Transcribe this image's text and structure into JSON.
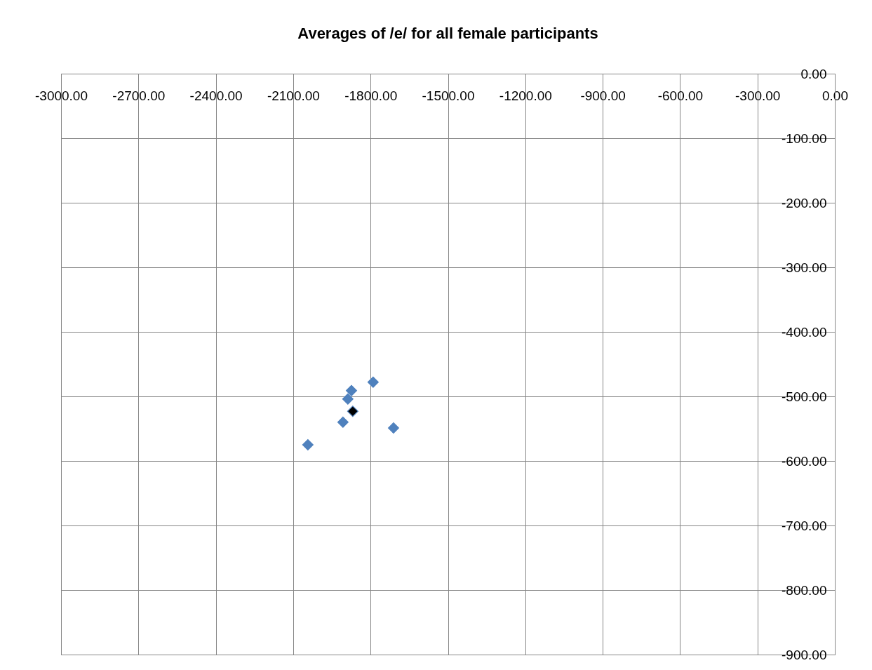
{
  "chart_data": {
    "type": "scatter",
    "title": "Averages of /e/ for all female participants",
    "series": [
      {
        "color": "#4f81bd",
        "x": [
          -2043,
          -1907,
          -1888,
          -1874,
          -1790,
          -1711
        ],
        "values": [
          -575,
          -540,
          -504,
          -491,
          -478,
          -549
        ]
      },
      {
        "color": "#000000",
        "x": [
          -1869
        ],
        "values": [
          -523
        ]
      }
    ],
    "xlim": [
      -3000,
      0
    ],
    "ylim": [
      -900,
      0
    ],
    "xticks": [
      {
        "value": -3000,
        "label": "-3000.00"
      },
      {
        "value": -2700,
        "label": "-2700.00"
      },
      {
        "value": -2400,
        "label": "-2400.00"
      },
      {
        "value": -2100,
        "label": "-2100.00"
      },
      {
        "value": -1800,
        "label": "-1800.00"
      },
      {
        "value": -1500,
        "label": "-1500.00"
      },
      {
        "value": -1200,
        "label": "-1200.00"
      },
      {
        "value": -900,
        "label": "-900.00"
      },
      {
        "value": -600,
        "label": "-600.00"
      },
      {
        "value": -300,
        "label": "-300.00"
      },
      {
        "value": 0,
        "label": "0.00"
      }
    ],
    "yticks": [
      {
        "value": 0,
        "label": "0.00"
      },
      {
        "value": -100,
        "label": "-100.00"
      },
      {
        "value": -200,
        "label": "-200.00"
      },
      {
        "value": -300,
        "label": "-300.00"
      },
      {
        "value": -400,
        "label": "-400.00"
      },
      {
        "value": -500,
        "label": "-500.00"
      },
      {
        "value": -600,
        "label": "-600.00"
      },
      {
        "value": -700,
        "label": "-700.00"
      },
      {
        "value": -800,
        "label": "-800.00"
      },
      {
        "value": -900,
        "label": "-900.00"
      }
    ],
    "grid": true,
    "marker": "diamond"
  }
}
